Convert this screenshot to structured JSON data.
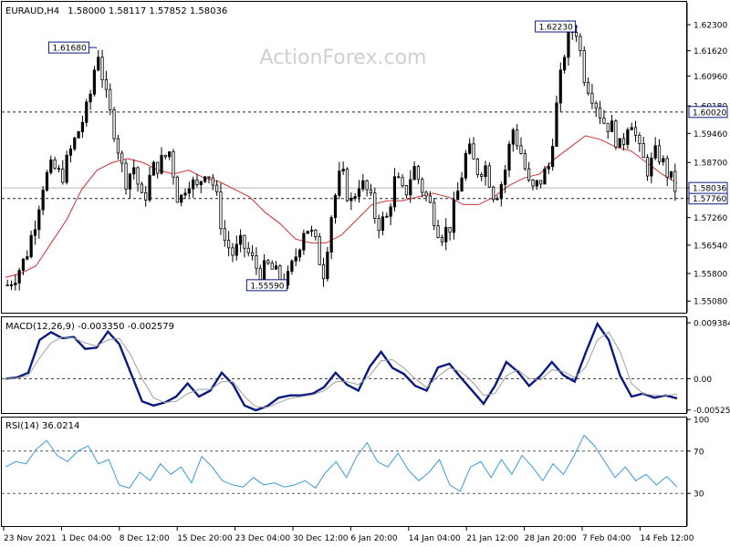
{
  "header": {
    "symbol": "EURAUD,H4",
    "ohlc": "1.58000 1.58117 1.57852 1.58036"
  },
  "watermark": "ActionForex.com",
  "colors": {
    "candles": "#000000",
    "ma": "#d03030",
    "macd_line": "#0a1a80",
    "signal_line": "#a0a0a0",
    "rsi_line": "#3a9ad9",
    "grid_dashed": "#202020",
    "level_box": "#0a1a80"
  },
  "chart_data": [
    {
      "type": "candlestick",
      "panel": "price",
      "ylim": [
        1.548,
        1.6285
      ],
      "y_ticks": [
        "1.62300",
        "1.61620",
        "1.60960",
        "1.60180",
        "1.59460",
        "1.58700",
        "1.58036",
        "1.57760",
        "1.57260",
        "1.56540",
        "1.55800",
        "1.55080"
      ],
      "levels": [
        {
          "value": 1.6002,
          "label": "1.60020",
          "style": "dashed",
          "boxed": true
        },
        {
          "value": 1.5776,
          "label": "1.57760",
          "style": "dashed",
          "boxed": true
        },
        {
          "value": 1.58036,
          "label": "1.58036",
          "style": "solid",
          "boxed": true
        }
      ],
      "annotations": [
        {
          "label": "1.61680",
          "value": 1.6168
        },
        {
          "label": "1.55590",
          "value": 1.5559
        },
        {
          "label": "1.62230",
          "value": 1.6223
        }
      ],
      "series": [
        {
          "type": "close_path",
          "values": [
            1.555,
            1.558,
            1.562,
            1.571,
            1.582,
            1.586,
            1.583,
            1.59,
            1.596,
            1.602,
            1.6168,
            1.603,
            1.594,
            1.582,
            1.586,
            1.576,
            1.585,
            1.587,
            1.59,
            1.576,
            1.583,
            1.58,
            1.586,
            1.58,
            1.567,
            1.563,
            1.566,
            1.562,
            1.558,
            1.56,
            1.557,
            1.5559,
            1.563,
            1.571,
            1.567,
            1.558,
            1.575,
            1.585,
            1.576,
            1.582,
            1.579,
            1.571,
            1.572,
            1.583,
            1.578,
            1.586,
            1.58,
            1.575,
            1.568,
            1.57,
            1.58,
            1.591,
            1.585,
            1.586,
            1.578,
            1.583,
            1.596,
            1.589,
            1.579,
            1.582,
            1.586,
            1.604,
            1.62,
            1.6223,
            1.609,
            1.604,
            1.598,
            1.596,
            1.59,
            1.6,
            1.59,
            1.585,
            1.59,
            1.585,
            1.58036
          ]
        },
        {
          "type": "moving_average",
          "values": [
            1.557,
            1.558,
            1.56,
            1.566,
            1.572,
            1.58,
            1.585,
            1.587,
            1.588,
            1.587,
            1.585,
            1.584,
            1.585,
            1.583,
            1.582,
            1.58,
            1.578,
            1.574,
            1.571,
            1.567,
            1.566,
            1.566,
            1.568,
            1.572,
            1.576,
            1.577,
            1.577,
            1.578,
            1.579,
            1.578,
            1.576,
            1.576,
            1.578,
            1.581,
            1.583,
            1.584,
            1.588,
            1.591,
            1.594,
            1.593,
            1.591,
            1.59,
            1.587,
            1.584,
            1.5816
          ]
        }
      ]
    },
    {
      "type": "line",
      "panel": "macd",
      "title": "MACD(12,26,9) -0.003350 -0.002579",
      "ylim": [
        -0.0056,
        0.01
      ],
      "y_ticks": [
        "0.009384",
        "0.00",
        "-0.005252"
      ],
      "series": [
        {
          "name": "macd",
          "values": [
            0.0,
            0.0002,
            0.001,
            0.0065,
            0.0078,
            0.0068,
            0.007,
            0.005,
            0.0052,
            0.0079,
            0.0058,
            0.001,
            -0.0038,
            -0.0045,
            -0.004,
            -0.003,
            -0.0008,
            -0.003,
            -0.002,
            0.001,
            -0.001,
            -0.0045,
            -0.0053,
            -0.0046,
            -0.0032,
            -0.0028,
            -0.0028,
            -0.0025,
            -0.0014,
            0.001,
            -0.001,
            -0.002,
            0.002,
            0.0045,
            0.0018,
            0.0008,
            -0.0012,
            -0.002,
            0.0019,
            0.0025,
            0.0002,
            -0.002,
            -0.0042,
            -0.0012,
            0.0028,
            0.0012,
            -0.0012,
            0.0005,
            0.0028,
            0.0006,
            -0.0005,
            0.0045,
            0.0092,
            0.0065,
            0.0005,
            -0.003,
            -0.0025,
            -0.0032,
            -0.0028,
            -0.0033
          ]
        },
        {
          "name": "signal",
          "values": [
            0.0,
            0.0001,
            0.0005,
            0.0035,
            0.006,
            0.007,
            0.0068,
            0.006,
            0.0055,
            0.0065,
            0.0068,
            0.004,
            0.0,
            -0.0032,
            -0.004,
            -0.0038,
            -0.0025,
            -0.0018,
            -0.0018,
            -0.0005,
            -0.0005,
            -0.003,
            -0.0047,
            -0.0048,
            -0.004,
            -0.0033,
            -0.003,
            -0.0027,
            -0.002,
            -0.0005,
            -0.0005,
            -0.001,
            0.0005,
            0.003,
            0.0032,
            0.0018,
            0.0,
            -0.0015,
            0.0004,
            0.0018,
            0.0012,
            -0.0005,
            -0.0028,
            -0.0025,
            0.0005,
            0.0015,
            0.0,
            -0.0002,
            0.0015,
            0.0012,
            0.0002,
            0.002,
            0.0065,
            0.0078,
            0.0045,
            -0.0008,
            -0.0025,
            -0.0028,
            -0.0028,
            -0.0026
          ]
        }
      ]
    },
    {
      "type": "line",
      "panel": "rsi",
      "title": "RSI(14) 36.0214",
      "ylim": [
        0,
        100
      ],
      "y_ticks": [
        "100",
        "70",
        "30"
      ],
      "levels": [
        70,
        30
      ],
      "series": [
        {
          "name": "rsi",
          "values": [
            55,
            60,
            58,
            72,
            80,
            66,
            60,
            70,
            75,
            58,
            62,
            38,
            35,
            50,
            42,
            58,
            48,
            55,
            40,
            65,
            55,
            42,
            38,
            36,
            45,
            38,
            40,
            36,
            38,
            42,
            35,
            50,
            60,
            45,
            65,
            78,
            60,
            55,
            68,
            52,
            42,
            50,
            62,
            38,
            32,
            55,
            60,
            45,
            62,
            48,
            66,
            55,
            42,
            58,
            48,
            65,
            85,
            75,
            60,
            45,
            55,
            42,
            48,
            38,
            46,
            36
          ]
        }
      ],
      "x_labels": [
        "23 Nov 2021",
        "1 Dec 04:00",
        "8 Dec 12:00",
        "15 Dec 20:00",
        "23 Dec 04:00",
        "30 Dec 12:00",
        "6 Jan 20:00",
        "14 Jan 04:00",
        "21 Jan 12:00",
        "28 Jan 20:00",
        "7 Feb 04:00",
        "14 Feb 12:00"
      ]
    }
  ]
}
